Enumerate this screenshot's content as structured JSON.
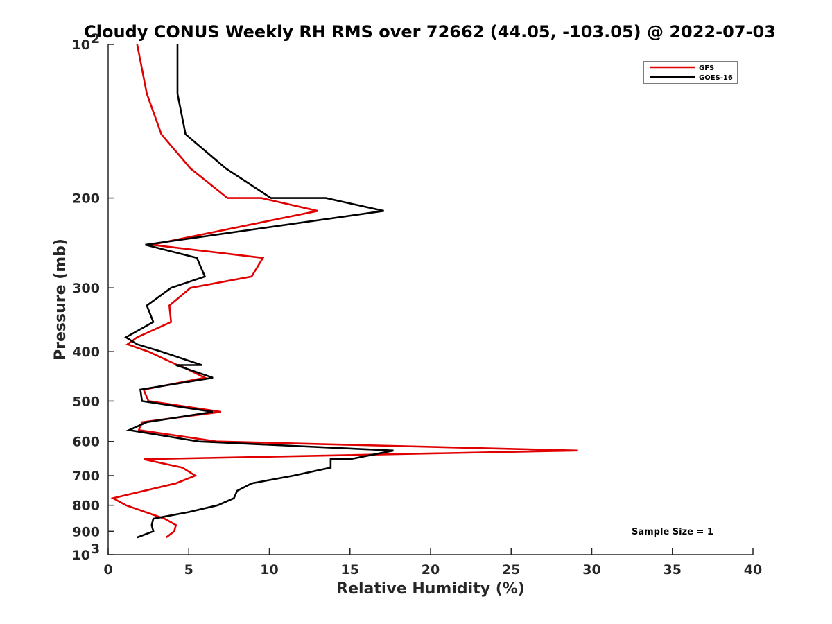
{
  "chart_data": {
    "type": "line",
    "title": "Cloudy CONUS Weekly RH RMS over 72662 (44.05, -103.05) @ 2022-07-03",
    "xlabel": "Relative Humidity (%)",
    "ylabel": "Pressure (mb)",
    "xlim": [
      0,
      40
    ],
    "ylim": [
      100,
      1000
    ],
    "yscale": "log",
    "yreversed": true,
    "grid": false,
    "legend_position": "top-right",
    "x_ticks": [
      "0",
      "5",
      "10",
      "15",
      "20",
      "25",
      "30",
      "35",
      "40"
    ],
    "y_ticks": [
      {
        "value": 100,
        "base": "10",
        "exp": "2"
      },
      {
        "value": 200,
        "label": "200"
      },
      {
        "value": 300,
        "label": "300"
      },
      {
        "value": 400,
        "label": "400"
      },
      {
        "value": 500,
        "label": "500"
      },
      {
        "value": 600,
        "label": "600"
      },
      {
        "value": 700,
        "label": "700"
      },
      {
        "value": 800,
        "label": "800"
      },
      {
        "value": 900,
        "label": "900"
      },
      {
        "value": 1000,
        "base": "10",
        "exp": "3"
      }
    ],
    "annotation": "Sample Size = 1",
    "series": [
      {
        "name": "GFS",
        "color": "#e00000",
        "points": [
          [
            1.8,
            100
          ],
          [
            2.4,
            125
          ],
          [
            3.3,
            150
          ],
          [
            5.1,
            175
          ],
          [
            7.4,
            200
          ],
          [
            9.5,
            200
          ],
          [
            13.0,
            212
          ],
          [
            2.7,
            247
          ],
          [
            9.6,
            262
          ],
          [
            8.9,
            285
          ],
          [
            5.1,
            300
          ],
          [
            3.8,
            325
          ],
          [
            3.9,
            350
          ],
          [
            1.8,
            375
          ],
          [
            1.2,
            387
          ],
          [
            2.5,
            400
          ],
          [
            4.3,
            425
          ],
          [
            4.4,
            425
          ],
          [
            6.0,
            450
          ],
          [
            2.2,
            475
          ],
          [
            2.5,
            500
          ],
          [
            7.0,
            525
          ],
          [
            2.1,
            550
          ],
          [
            1.9,
            570
          ],
          [
            6.7,
            600
          ],
          [
            29.1,
            625
          ],
          [
            2.2,
            650
          ],
          [
            4.6,
            675
          ],
          [
            5.4,
            700
          ],
          [
            4.2,
            725
          ],
          [
            0.3,
            775
          ],
          [
            1.1,
            800
          ],
          [
            3.5,
            850
          ],
          [
            4.2,
            875
          ],
          [
            4.1,
            900
          ],
          [
            3.6,
            925
          ]
        ]
      },
      {
        "name": "GOES-16",
        "color": "#000000",
        "points": [
          [
            4.3,
            100
          ],
          [
            4.3,
            125
          ],
          [
            4.8,
            150
          ],
          [
            7.3,
            175
          ],
          [
            10.1,
            200
          ],
          [
            13.5,
            200
          ],
          [
            17.1,
            212
          ],
          [
            2.3,
            247
          ],
          [
            5.5,
            262
          ],
          [
            6.0,
            285
          ],
          [
            3.9,
            300
          ],
          [
            2.4,
            325
          ],
          [
            2.8,
            350
          ],
          [
            1.1,
            375
          ],
          [
            1.8,
            387
          ],
          [
            3.3,
            400
          ],
          [
            5.8,
            425
          ],
          [
            4.2,
            425
          ],
          [
            6.5,
            450
          ],
          [
            2.0,
            475
          ],
          [
            2.1,
            500
          ],
          [
            6.5,
            525
          ],
          [
            2.4,
            550
          ],
          [
            1.3,
            570
          ],
          [
            5.6,
            600
          ],
          [
            17.7,
            625
          ],
          [
            15.0,
            650
          ],
          [
            13.8,
            650
          ],
          [
            13.8,
            675
          ],
          [
            11.5,
            700
          ],
          [
            8.9,
            725
          ],
          [
            8.0,
            750
          ],
          [
            7.8,
            775
          ],
          [
            6.8,
            800
          ],
          [
            5.0,
            825
          ],
          [
            2.8,
            850
          ],
          [
            2.7,
            875
          ],
          [
            2.8,
            900
          ],
          [
            1.8,
            925
          ]
        ]
      }
    ]
  }
}
